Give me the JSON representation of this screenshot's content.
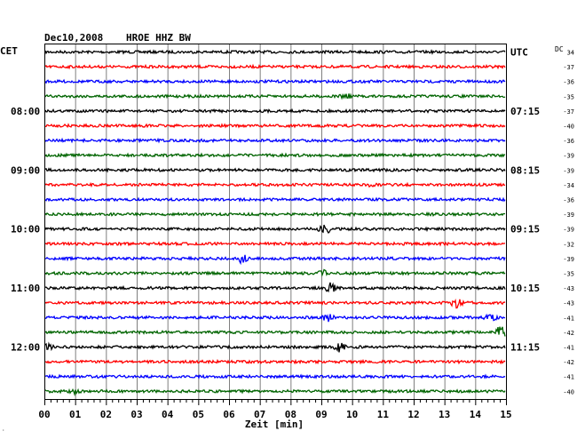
{
  "header": {
    "date": "Dec10,2008",
    "station": "HROE HHZ BW",
    "left_zone": "CET",
    "right_zone": "UTC",
    "dc_label": "DC"
  },
  "colors": {
    "trace_cycle": [
      "#000000",
      "#ff0000",
      "#0000ff",
      "#006400"
    ],
    "grid": "#7f7f7f"
  },
  "chart_data": {
    "type": "line",
    "title": "Dec10,2008   HROE HHZ BW",
    "xlabel": "Zeit [min]",
    "ylabel": "",
    "xlim": [
      0,
      15
    ],
    "x_ticks": [
      "00",
      "01",
      "02",
      "03",
      "04",
      "05",
      "06",
      "07",
      "08",
      "09",
      "10",
      "11",
      "12",
      "13",
      "14",
      "15"
    ],
    "grid": true,
    "trace_count": 24,
    "left_time_labels": [
      {
        "row": 4,
        "text": "08:00"
      },
      {
        "row": 8,
        "text": "09:00"
      },
      {
        "row": 12,
        "text": "10:00"
      },
      {
        "row": 16,
        "text": "11:00"
      },
      {
        "row": 20,
        "text": "12:00"
      }
    ],
    "right_time_labels": [
      {
        "row": 0,
        "text": "UTC"
      },
      {
        "row": 4,
        "text": "07:15"
      },
      {
        "row": 8,
        "text": "08:15"
      },
      {
        "row": 12,
        "text": "09:15"
      },
      {
        "row": 16,
        "text": "10:15"
      },
      {
        "row": 20,
        "text": "11:15"
      }
    ],
    "dc_offsets": [
      "34",
      "-37",
      "-36",
      "-35",
      "-37",
      "-40",
      "-36",
      "-39",
      "-39",
      "-34",
      "-36",
      "-39",
      "-39",
      "-32",
      "-39",
      "-35",
      "-43",
      "-43",
      "-41",
      "-42",
      "-41",
      "-42",
      "-41",
      "-40"
    ],
    "events": [
      {
        "row": 3,
        "minute": 9.8,
        "amp": 2.5
      },
      {
        "row": 9,
        "minute": 10.7,
        "amp": 2.0
      },
      {
        "row": 12,
        "minute": 9.1,
        "amp": 7.0
      },
      {
        "row": 14,
        "minute": 6.4,
        "amp": 5.0
      },
      {
        "row": 15,
        "minute": 9.0,
        "amp": 4.0
      },
      {
        "row": 16,
        "minute": 9.3,
        "amp": 5.0
      },
      {
        "row": 17,
        "minute": 13.4,
        "amp": 5.0
      },
      {
        "row": 18,
        "minute": 9.2,
        "amp": 5.0
      },
      {
        "row": 18,
        "minute": 14.5,
        "amp": 4.0
      },
      {
        "row": 19,
        "minute": 14.85,
        "amp": 9.0
      },
      {
        "row": 20,
        "minute": 9.6,
        "amp": 5.0
      },
      {
        "row": 20,
        "minute": 0.1,
        "amp": 3.0
      },
      {
        "row": 23,
        "minute": 1.0,
        "amp": 2.0
      }
    ]
  }
}
